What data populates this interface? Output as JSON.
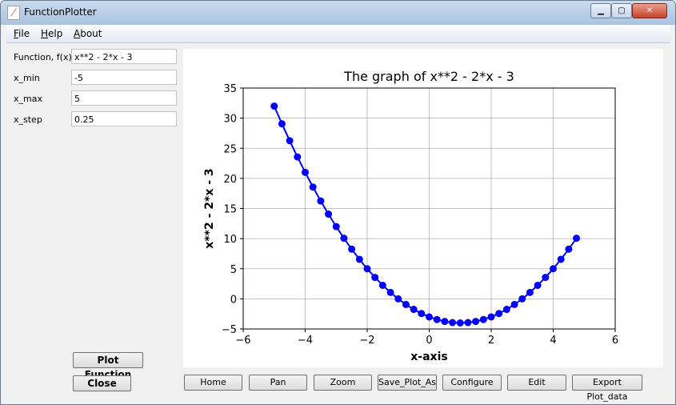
{
  "window": {
    "title": "FunctionPlotter",
    "minimize_label": "▁",
    "maximize_label": "▢",
    "close_label": "✕"
  },
  "menu": [
    {
      "label": "File",
      "mnemonic": "F",
      "rest": "ile"
    },
    {
      "label": "Help",
      "mnemonic": "H",
      "rest": "elp"
    },
    {
      "label": "About",
      "mnemonic": "A",
      "rest": "bout"
    }
  ],
  "form": {
    "function": {
      "label": "Function, f(x)",
      "value": "x**2 - 2*x - 3"
    },
    "x_min": {
      "label": "x_min",
      "value": "-5"
    },
    "x_max": {
      "label": "x_max",
      "value": "5"
    },
    "x_step": {
      "label": "x_step",
      "value": "0.25"
    }
  },
  "buttons": {
    "plot": "Plot Function",
    "close": "Close"
  },
  "toolbar": [
    "Home",
    "Pan",
    "Zoom",
    "Save_Plot_As",
    "Configure",
    "Edit",
    "Export Plot_data"
  ],
  "chart_data": {
    "type": "line",
    "title": "The graph of x**2 - 2*x - 3",
    "xlabel": "x-axis",
    "ylabel": "x**2 - 2*x - 3",
    "xlim": [
      -6,
      6
    ],
    "ylim": [
      -5,
      35
    ],
    "xticks": [
      -6,
      -4,
      -2,
      0,
      2,
      4,
      6
    ],
    "yticks": [
      -5,
      0,
      5,
      10,
      15,
      20,
      25,
      30,
      35
    ],
    "grid": true,
    "color": "#0000ff",
    "x": [
      -5,
      -4.75,
      -4.5,
      -4.25,
      -4,
      -3.75,
      -3.5,
      -3.25,
      -3,
      -2.75,
      -2.5,
      -2.25,
      -2,
      -1.75,
      -1.5,
      -1.25,
      -1,
      -0.75,
      -0.5,
      -0.25,
      0,
      0.25,
      0.5,
      0.75,
      1,
      1.25,
      1.5,
      1.75,
      2,
      2.25,
      2.5,
      2.75,
      3,
      3.25,
      3.5,
      3.75,
      4,
      4.25,
      4.5,
      4.75
    ],
    "y": [
      32,
      29.0625,
      26.25,
      23.5625,
      21,
      18.5625,
      16.25,
      14.0625,
      12,
      10.0625,
      8.25,
      6.5625,
      5,
      3.5625,
      2.25,
      1.0625,
      0,
      -0.9375,
      -1.75,
      -2.4375,
      -3,
      -3.4375,
      -3.75,
      -3.9375,
      -4,
      -3.9375,
      -3.75,
      -3.4375,
      -3,
      -2.4375,
      -1.75,
      -0.9375,
      0,
      1.0625,
      2.25,
      3.5625,
      5,
      6.5625,
      8.25,
      10.0625
    ]
  }
}
